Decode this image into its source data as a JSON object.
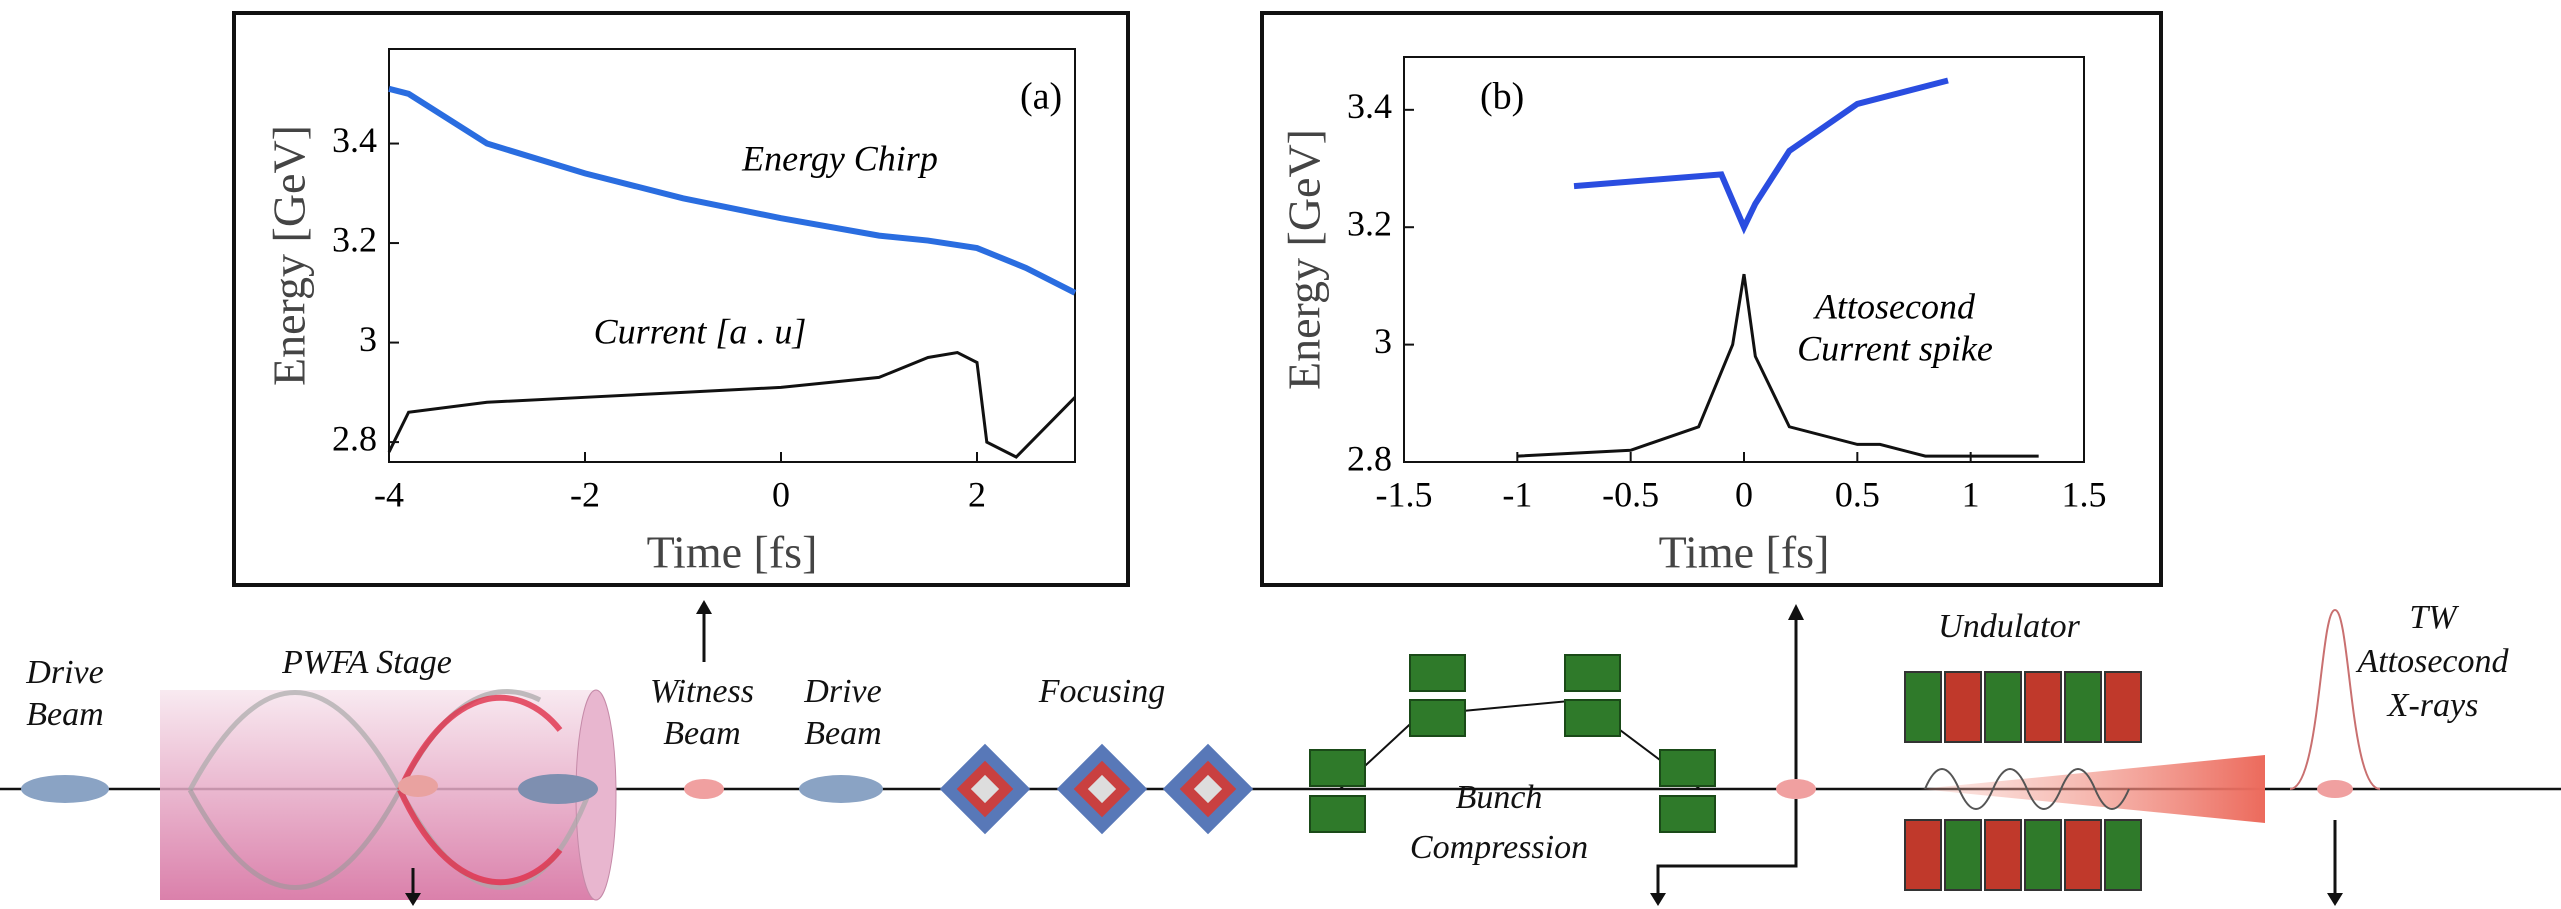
{
  "chart_data": [
    {
      "type": "line",
      "panel_label": "(a)",
      "annotations": [
        "Energy Chirp",
        "Current [a . u]"
      ],
      "xlabel": "Time [fs]",
      "ylabel": "Energy [GeV]",
      "xlim": [
        -4,
        3
      ],
      "ylim": [
        2.76,
        3.59
      ],
      "xticks": [
        -4,
        -2,
        0,
        2
      ],
      "yticks": [
        2.8,
        3,
        3.2,
        3.4
      ],
      "series": [
        {
          "color": "#2a6de0",
          "x": [
            -4,
            -3.8,
            -3,
            -2,
            -1,
            0,
            1,
            1.5,
            2,
            2.5,
            3
          ],
          "values": [
            3.51,
            3.5,
            3.4,
            3.34,
            3.29,
            3.25,
            3.215,
            3.205,
            3.19,
            3.15,
            3.1
          ]
        },
        {
          "color": "#111111",
          "x": [
            -4,
            -3.8,
            -3,
            -2,
            -1,
            0,
            1,
            1.5,
            1.8,
            2,
            2.1,
            2.4,
            3
          ],
          "values": [
            2.78,
            2.86,
            2.88,
            2.89,
            2.9,
            2.91,
            2.93,
            2.97,
            2.98,
            2.96,
            2.8,
            2.77,
            2.89
          ]
        }
      ]
    },
    {
      "type": "line",
      "panel_label": "(b)",
      "annotations": [
        "Attosecond",
        "Current spike"
      ],
      "xlabel": "Time [fs]",
      "ylabel": "Energy [GeV]",
      "xlim": [
        -1.5,
        1.5
      ],
      "ylim": [
        2.8,
        3.49
      ],
      "xticks": [
        -1.5,
        -1,
        -0.5,
        0,
        0.5,
        1,
        1.5
      ],
      "yticks": [
        2.8,
        3,
        3.2,
        3.4
      ],
      "series": [
        {
          "color": "#2a4de0",
          "x": [
            -0.75,
            -0.1,
            0,
            0.05,
            0.2,
            0.5,
            0.9
          ],
          "values": [
            3.27,
            3.29,
            3.2,
            3.24,
            3.33,
            3.41,
            3.45
          ]
        },
        {
          "color": "#111111",
          "x": [
            -1,
            -0.5,
            -0.2,
            -0.05,
            0,
            0.05,
            0.2,
            0.5,
            0.6,
            0.8,
            1.3
          ],
          "values": [
            2.81,
            2.82,
            2.86,
            3,
            3.12,
            2.98,
            2.86,
            2.83,
            2.83,
            2.81,
            2.81
          ]
        }
      ]
    }
  ],
  "labels": {
    "drive_beam_1": [
      "Drive",
      "Beam"
    ],
    "pwfa_stage": "PWFA Stage",
    "witness_beam": [
      "Witness",
      "Beam"
    ],
    "drive_beam_2": [
      "Drive",
      "Beam"
    ],
    "focusing": "Focusing",
    "bunch_compression": [
      "Bunch",
      "Compression"
    ],
    "undulator": "Undulator",
    "xrays": [
      "TW",
      "Attosecond",
      "X-rays"
    ]
  }
}
